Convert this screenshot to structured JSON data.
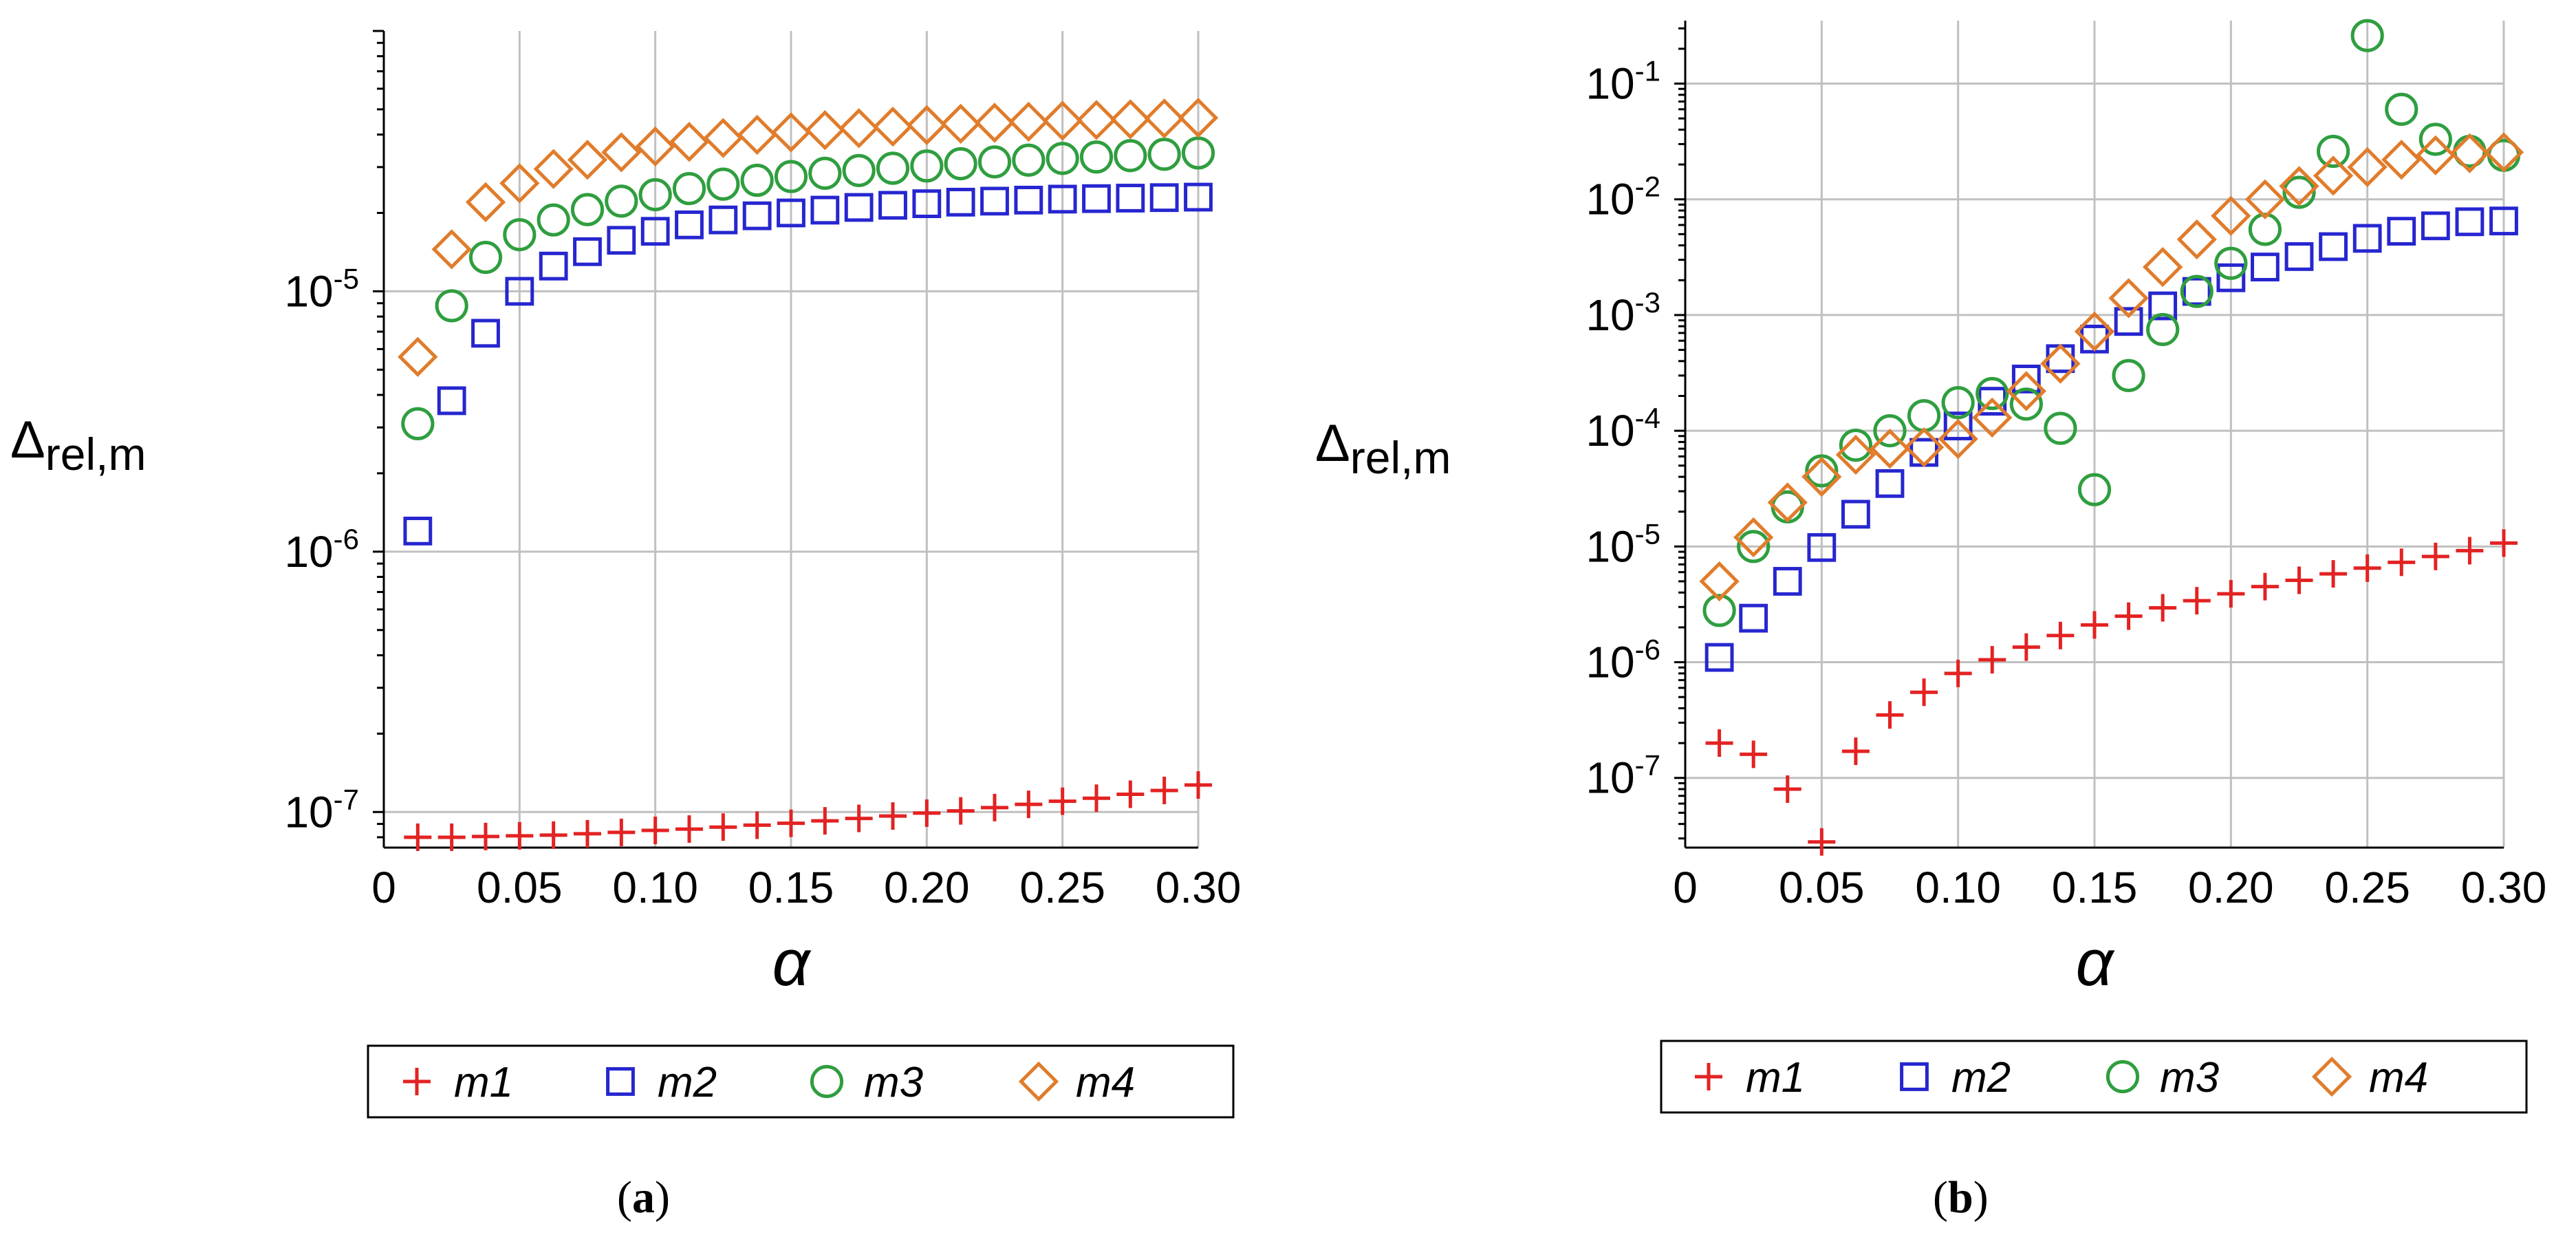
{
  "chart_data": [
    {
      "type": "scatter",
      "panel_label": "(a)",
      "panel_letter": "a",
      "xlabel": "α",
      "ylabel_main": "Δ",
      "ylabel_sub": "rel,m",
      "yscale": "log",
      "xlim": [
        0,
        0.3
      ],
      "ylim": [
        7.3e-08,
        0.0001
      ],
      "xticks": [
        0,
        0.05,
        0.1,
        0.15,
        0.2,
        0.25,
        0.3
      ],
      "xtick_labels": [
        "0",
        "0.05",
        "0.10",
        "0.15",
        "0.20",
        "0.25",
        "0.30"
      ],
      "yticks": [
        {
          "value": 1e-07,
          "base": "10",
          "exp": "-7"
        },
        {
          "value": 1e-06,
          "base": "10",
          "exp": "-6"
        },
        {
          "value": 1e-05,
          "base": "10",
          "exp": "-5"
        }
      ],
      "grid": true,
      "legend_position": "bottom",
      "x": [
        0.0125,
        0.025,
        0.0375,
        0.05,
        0.0625,
        0.075,
        0.0875,
        0.1,
        0.1125,
        0.125,
        0.1375,
        0.15,
        0.1625,
        0.175,
        0.1875,
        0.2,
        0.2125,
        0.225,
        0.2375,
        0.25,
        0.2625,
        0.275,
        0.2875,
        0.3
      ],
      "series": [
        {
          "name": "m1",
          "marker": "plus",
          "color": "#e32222",
          "values": [
            8e-08,
            8e-08,
            8.05e-08,
            8.1e-08,
            8.15e-08,
            8.25e-08,
            8.35e-08,
            8.5e-08,
            8.6e-08,
            8.75e-08,
            8.9e-08,
            9.05e-08,
            9.25e-08,
            9.45e-08,
            9.65e-08,
            9.9e-08,
            1.01e-07,
            1.04e-07,
            1.07e-07,
            1.1e-07,
            1.13e-07,
            1.17e-07,
            1.21e-07,
            1.27e-07
          ]
        },
        {
          "name": "m2",
          "marker": "square",
          "color": "#2626d0",
          "values": [
            1.2e-06,
            3.8e-06,
            6.9e-06,
            1e-05,
            1.25e-05,
            1.42e-05,
            1.57e-05,
            1.7e-05,
            1.8e-05,
            1.88e-05,
            1.95e-05,
            2e-05,
            2.05e-05,
            2.1e-05,
            2.14e-05,
            2.17e-05,
            2.2e-05,
            2.22e-05,
            2.24e-05,
            2.26e-05,
            2.27e-05,
            2.28e-05,
            2.29e-05,
            2.3e-05
          ]
        },
        {
          "name": "m3",
          "marker": "circle",
          "color": "#2f9e3f",
          "values": [
            3.1e-06,
            8.8e-06,
            1.35e-05,
            1.65e-05,
            1.88e-05,
            2.06e-05,
            2.22e-05,
            2.35e-05,
            2.48e-05,
            2.58e-05,
            2.67e-05,
            2.76e-05,
            2.84e-05,
            2.91e-05,
            2.97e-05,
            3.03e-05,
            3.09e-05,
            3.14e-05,
            3.19e-05,
            3.24e-05,
            3.28e-05,
            3.32e-05,
            3.36e-05,
            3.4e-05
          ]
        },
        {
          "name": "m4",
          "marker": "diamond",
          "color": "#e07c2b",
          "values": [
            5.6e-06,
            1.45e-05,
            2.2e-05,
            2.6e-05,
            2.95e-05,
            3.2e-05,
            3.42e-05,
            3.6e-05,
            3.75e-05,
            3.88e-05,
            3.99e-05,
            4.08e-05,
            4.16e-05,
            4.23e-05,
            4.29e-05,
            4.35e-05,
            4.4e-05,
            4.44e-05,
            4.48e-05,
            4.52e-05,
            4.55e-05,
            4.58e-05,
            4.61e-05,
            4.64e-05
          ]
        }
      ]
    },
    {
      "type": "scatter",
      "panel_label": "(b)",
      "panel_letter": "b",
      "xlabel": "α",
      "ylabel_main": "Δ",
      "ylabel_sub": "rel,m",
      "yscale": "log",
      "xlim": [
        0,
        0.3
      ],
      "ylim": [
        2.5e-08,
        0.35
      ],
      "xticks": [
        0,
        0.05,
        0.1,
        0.15,
        0.2,
        0.25,
        0.3
      ],
      "xtick_labels": [
        "0",
        "0.05",
        "0.10",
        "0.15",
        "0.20",
        "0.25",
        "0.30"
      ],
      "yticks": [
        {
          "value": 1e-07,
          "base": "10",
          "exp": "-7"
        },
        {
          "value": 1e-06,
          "base": "10",
          "exp": "-6"
        },
        {
          "value": 1e-05,
          "base": "10",
          "exp": "-5"
        },
        {
          "value": 0.0001,
          "base": "10",
          "exp": "-4"
        },
        {
          "value": 0.001,
          "base": "10",
          "exp": "-3"
        },
        {
          "value": 0.01,
          "base": "10",
          "exp": "-2"
        },
        {
          "value": 0.1,
          "base": "10",
          "exp": "-1"
        }
      ],
      "grid": true,
      "legend_position": "bottom",
      "x": [
        0.0125,
        0.025,
        0.0375,
        0.05,
        0.0625,
        0.075,
        0.0875,
        0.1,
        0.1125,
        0.125,
        0.1375,
        0.15,
        0.1625,
        0.175,
        0.1875,
        0.2,
        0.2125,
        0.225,
        0.2375,
        0.25,
        0.2625,
        0.275,
        0.2875,
        0.3
      ],
      "series": [
        {
          "name": "m1",
          "marker": "plus",
          "color": "#e32222",
          "values": [
            2e-07,
            1.6e-07,
            8e-08,
            2.8e-08,
            1.7e-07,
            3.5e-07,
            5.5e-07,
            8e-07,
            1.05e-06,
            1.35e-06,
            1.7e-06,
            2.1e-06,
            2.5e-06,
            2.95e-06,
            3.4e-06,
            3.9e-06,
            4.5e-06,
            5.1e-06,
            5.8e-06,
            6.5e-06,
            7.3e-06,
            8.2e-06,
            9.2e-06,
            1.07e-05
          ]
        },
        {
          "name": "m2",
          "marker": "square",
          "color": "#2626d0",
          "values": [
            1.1e-06,
            2.4e-06,
            5e-06,
            9.8e-06,
            1.9e-05,
            3.5e-05,
            6.5e-05,
            0.00011,
            0.00018,
            0.00028,
            0.00042,
            0.00062,
            0.00088,
            0.0012,
            0.0016,
            0.0021,
            0.0026,
            0.0032,
            0.0039,
            0.0046,
            0.0053,
            0.0059,
            0.0064,
            0.0065
          ]
        },
        {
          "name": "m3",
          "marker": "circle",
          "color": "#2f9e3f",
          "values": [
            2.8e-06,
            1e-05,
            2.2e-05,
            4.5e-05,
            7.5e-05,
            0.0001,
            0.000135,
            0.000175,
            0.00021,
            0.00017,
            0.000105,
            3.1e-05,
            0.0003,
            0.00075,
            0.0016,
            0.0028,
            0.0055,
            0.0115,
            0.026,
            0.26,
            0.06,
            0.033,
            0.026,
            0.024
          ]
        },
        {
          "name": "m4",
          "marker": "diamond",
          "color": "#e07c2b",
          "values": [
            5e-06,
            1.2e-05,
            2.4e-05,
            4e-05,
            6.2e-05,
            7e-05,
            7.2e-05,
            8.5e-05,
            0.00013,
            0.00022,
            0.00038,
            0.00072,
            0.0014,
            0.0026,
            0.0045,
            0.0072,
            0.01,
            0.013,
            0.016,
            0.019,
            0.022,
            0.024,
            0.025,
            0.0255
          ]
        }
      ]
    }
  ]
}
